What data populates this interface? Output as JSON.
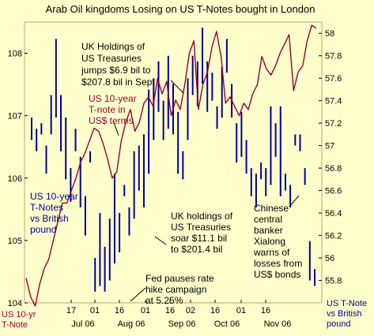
{
  "chart_data": {
    "type": "line",
    "title": "Arab Oil kingdoms Losing on US T-Notes bought in London",
    "left_axis": {
      "label": "US 10-yr T-Note",
      "ylim": [
        104,
        108.5
      ],
      "ticks": [
        "104",
        "105",
        "106",
        "107",
        "108"
      ]
    },
    "right_axis": {
      "label": "US T-Note vs British pound",
      "ylim": [
        55.6,
        58.1
      ],
      "ticks": [
        "55.8",
        "56",
        "56.2",
        "56.4",
        "56.6",
        "56.8",
        "57",
        "57.2",
        "57.4",
        "57.6",
        "57.8",
        "58"
      ]
    },
    "x_ticks": [
      {
        "label": "17",
        "sub": "Jul 06"
      },
      {
        "label": "01",
        "sub": ""
      },
      {
        "label": "16",
        "sub": "Aug 06"
      },
      {
        "label": "01",
        "sub": ""
      },
      {
        "label": "16",
        "sub": "Sep 06"
      },
      {
        "label": "02",
        "sub": ""
      },
      {
        "label": "16",
        "sub": "Oct 06"
      },
      {
        "label": "01",
        "sub": ""
      },
      {
        "label": "16",
        "sub": "Nov 06"
      }
    ],
    "series": [
      {
        "name": "US 10-year T-note in US$ terms",
        "axis": "left",
        "color": "#990033",
        "values": [
          104.4,
          104.1,
          103.95,
          104.3,
          104.55,
          104.7,
          105.0,
          105.3,
          105.6,
          105.6,
          105.8,
          106.0,
          106.25,
          106.4,
          106.6,
          106.8,
          106.75,
          106.55,
          106.3,
          106.0,
          106.1,
          106.6,
          106.9,
          107.1,
          106.75,
          106.9,
          107.2,
          107.3,
          107.15,
          107.6,
          107.35,
          107.55,
          107.0,
          107.25,
          107.1,
          107.5,
          108.0,
          108.2,
          107.1,
          107.5,
          107.7,
          108.1,
          108.35,
          107.95,
          107.2,
          107.3,
          107.15,
          107.0,
          107.2,
          107.1,
          107.35,
          107.5,
          107.95,
          107.75,
          107.65,
          107.8,
          108.0,
          108.15,
          108.3,
          107.4,
          107.7,
          107.8,
          108.2,
          108.45,
          108.4
        ]
      },
      {
        "name": "US 10-year T-Notes vs British pound",
        "axis": "right",
        "color": "#000099",
        "style": "hi-lo bars",
        "values": [
          [
            57.05,
            57.25
          ],
          [
            56.95,
            57.15
          ],
          [
            57.1,
            57.2
          ],
          [
            56.75,
            57.0
          ],
          [
            57.1,
            57.45
          ],
          [
            57.25,
            57.95
          ],
          [
            56.95,
            57.45
          ],
          [
            56.7,
            57.25
          ],
          [
            56.5,
            56.8
          ],
          [
            56.95,
            57.15
          ],
          [
            56.45,
            56.9
          ],
          [
            56.2,
            56.55
          ],
          [
            56.85,
            56.95
          ],
          [
            55.7,
            56.0
          ],
          [
            55.75,
            56.4
          ],
          [
            55.7,
            56.1
          ],
          [
            55.8,
            56.35
          ],
          [
            55.95,
            56.75
          ],
          [
            56.05,
            56.4
          ],
          [
            56.55,
            56.65
          ],
          [
            56.2,
            56.45
          ],
          [
            56.35,
            56.95
          ],
          [
            56.6,
            57.0
          ],
          [
            56.45,
            57.1
          ],
          [
            56.75,
            57.5
          ],
          [
            57.05,
            57.6
          ],
          [
            57.3,
            57.75
          ],
          [
            57.05,
            57.4
          ],
          [
            57.15,
            57.8
          ],
          [
            57.1,
            57.55
          ],
          [
            56.75,
            57.3
          ],
          [
            56.7,
            56.95
          ],
          [
            57.05,
            57.6
          ],
          [
            57.45,
            57.8
          ],
          [
            57.35,
            57.75
          ],
          [
            57.55,
            58.05
          ],
          [
            57.3,
            57.75
          ],
          [
            57.4,
            57.65
          ],
          [
            57.15,
            57.35
          ],
          [
            57.25,
            57.7
          ],
          [
            57.65,
            57.95
          ],
          [
            57.25,
            57.55
          ],
          [
            56.85,
            57.2
          ],
          [
            56.9,
            57.3
          ],
          [
            56.75,
            57.05
          ],
          [
            56.55,
            56.8
          ],
          [
            56.45,
            56.75
          ],
          [
            56.7,
            56.85
          ],
          [
            56.55,
            56.8
          ],
          [
            56.65,
            57.35
          ],
          [
            56.9,
            57.2
          ],
          [
            56.55,
            57.35
          ],
          [
            56.6,
            56.75
          ],
          [
            56.45,
            56.65
          ],
          [
            57.0,
            57.1
          ],
          [
            56.95,
            57.1
          ],
          [
            56.65,
            56.8
          ],
          [
            55.8,
            56.15
          ],
          [
            55.75,
            55.9
          ]
        ]
      }
    ],
    "annotations": [
      {
        "lines": [
          "UK Holdings of",
          "US Treasuries",
          "jumps $6.9 bil to",
          "$207.8 bil in Sept"
        ]
      },
      {
        "lines": [
          "US 10-year",
          "T-note in",
          "US$ terms"
        ]
      },
      {
        "lines": [
          "US 10-year",
          "T-Notes",
          "vs British",
          "pound"
        ]
      },
      {
        "lines": [
          "UK holdings of",
          "US Treasuries",
          "soar $11.1 bil",
          "to $201.4 bil"
        ]
      },
      {
        "lines": [
          "Fed pauses rate",
          "hike campaign",
          "at 5.25%"
        ]
      },
      {
        "lines": [
          "Chinese",
          "central",
          "banker",
          "Xialong",
          "warns of",
          "losses from",
          "US$ bonds"
        ]
      }
    ],
    "colors": {
      "background": "#ffffcc",
      "left_series": "#990033",
      "right_series": "#000099",
      "left_axis_label": "#990033",
      "right_axis_label": "#000099",
      "annotation_text": "#000000",
      "plot_frame": "#c4a070"
    }
  }
}
